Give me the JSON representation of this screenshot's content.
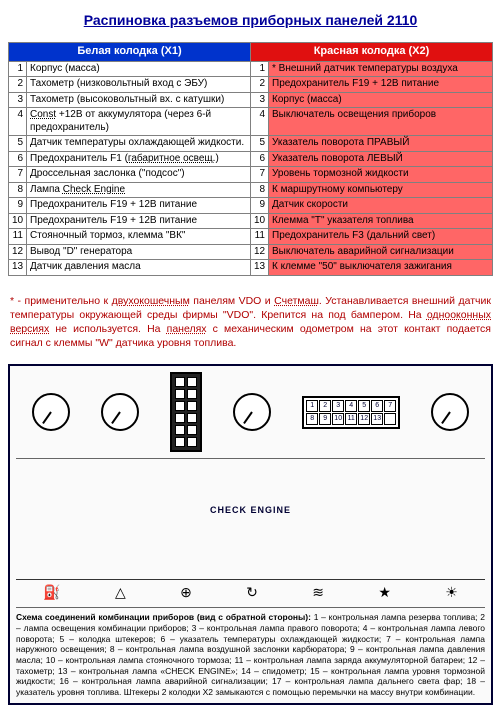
{
  "title": "Распиновка разъемов приборных панелей 2110",
  "table": {
    "headers": {
      "white": "Белая колодка (X1)",
      "red": "Красная колодка (X2)"
    },
    "rows": [
      {
        "n": 1,
        "w": "Корпус (масса)",
        "r": "* Внешний датчик температуры воздуха"
      },
      {
        "n": 2,
        "w": "Тахометр (низковольтный вход с ЭБУ)",
        "r": "Предохранитель F19 + 12В питание"
      },
      {
        "n": 3,
        "w": "Тахометр (высоковольтный вх. с катушки)",
        "r": "Корпус (масса)"
      },
      {
        "n": 4,
        "w": "<span class=\"dotted\">Const</span> +12В от аккумулятора (через 6-й предохранитель)",
        "r": "Выключатель освещения приборов"
      },
      {
        "n": 5,
        "w": "Датчик температуры охлаждающей жидкости.",
        "r": "Указатель поворота ПРАВЫЙ"
      },
      {
        "n": 6,
        "w": "Предохранитель F1 (<span class=\"dotted\">габаритное освещ.</span>)",
        "r": "Указатель поворота ЛЕВЫЙ"
      },
      {
        "n": 7,
        "w": "Дроссельная заслонка (\"подсос\")",
        "r": "Уровень тормозной жидкости"
      },
      {
        "n": 8,
        "w": "Лампа <span class=\"dotted\">Check Engine</span>",
        "r": "К маршрутному компьютеру"
      },
      {
        "n": 9,
        "w": "Предохранитель F19 + 12В питание",
        "r": "Датчик скорости"
      },
      {
        "n": 10,
        "w": "Предохранитель F19 + 12В питание",
        "r": "Клемма \"Т\" указателя топлива"
      },
      {
        "n": 11,
        "w": "Стояночный тормоз, клемма \"ВК\"",
        "r": "Предохранитель F3 (дальний свет)"
      },
      {
        "n": 12,
        "w": "Вывод \"D\" генератора",
        "r": "Выключатель аварийной сигнализации"
      },
      {
        "n": 13,
        "w": "Датчик давления масла",
        "r": "К клемме \"50\" выключателя зажигания"
      }
    ]
  },
  "note": "* - применительно к <span class=\"dotted\">двухокошечным</span> панелям VDO и <span class=\"dotted\">Счетмаш</span>. Устанавливается внешний датчик температуры окружающей среды фирмы \"VDO\". Крепится на под бампером. На <span class=\"dotted\">однооконных версиях</span> не используется. На <span class=\"dotted\">панелях</span> с механическим одометром на этот контакт подается сигнал с клеммы \"W\" датчика уровня топлива.",
  "diagram": {
    "symbols": [
      "⛽",
      "△",
      "⊕",
      "↻",
      "≋",
      "★",
      "☀"
    ],
    "check": "CHECK ENGINE",
    "caption_title": "Схема соединений комбинации приборов (вид с обратной стороны):",
    "caption_body": "1 – контрольная лампа резерва топлива; 2 – лампа освещения комбинации приборов; 3 – контрольная лампа правого поворота; 4 – контрольная лампа левого поворота; 5 – колодка штекеров; 6 – указатель температуры охлаждающей жидкости; 7 – контрольная лампа наружного освещения; 8 – контрольная лампа воздушной заслонки карбюратора; 9 – контрольная лампа давления масла; 10 – контрольная лампа стояночного тормоза; 11 – контрольная лампа заряда аккумуляторной батареи; 12 – тахометр; 13 – контрольная лампа «CHECK ENGINE»; 14 – спидометр; 15 – контрольная лампа уровня тормозной жидкости; 16 – контрольная лампа аварийной сигнализации; 17 – контрольная лампа дальнего света фар; 18 – указатель уровня топлива. Штекеры 2 колодки Х2 замыкаются с помощью перемычки на массу внутри комбинации."
  }
}
